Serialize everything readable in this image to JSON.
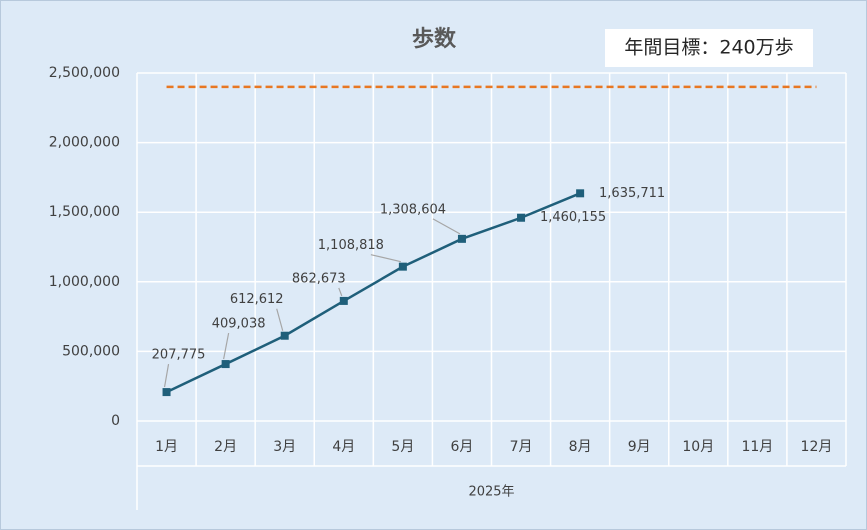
{
  "chart_data": {
    "type": "line",
    "title": "歩数",
    "categories": [
      "1月",
      "2月",
      "3月",
      "4月",
      "5月",
      "6月",
      "7月",
      "8月",
      "9月",
      "10月",
      "11月",
      "12月"
    ],
    "xlabel": "2025年",
    "series": [
      {
        "name": "歩数",
        "color": "#1f5f7a",
        "values": [
          207775,
          409038,
          612612,
          862673,
          1108818,
          1308604,
          1460155,
          1635711,
          null,
          null,
          null,
          null
        ],
        "value_labels": [
          "207,775",
          "409,038",
          "612,612",
          "862,673",
          "1,108,818",
          "1,308,604",
          "1,460,155",
          "1,635,711",
          null,
          null,
          null,
          null
        ]
      }
    ],
    "target": {
      "value": 2400000,
      "color": "#e87722",
      "label": "年間目標：240万歩"
    },
    "ylim": [
      0,
      2500000
    ],
    "yticks": [
      0,
      {
        "value": 500000,
        "label": "500,000"
      },
      {
        "value": 1000000,
        "label": "1,000,000"
      },
      {
        "value": 1500000,
        "label": "1,500,000"
      },
      {
        "value": 2000000,
        "label": "2,000,000"
      },
      {
        "value": 2500000,
        "label": "2,500,000"
      }
    ],
    "grid": true
  }
}
